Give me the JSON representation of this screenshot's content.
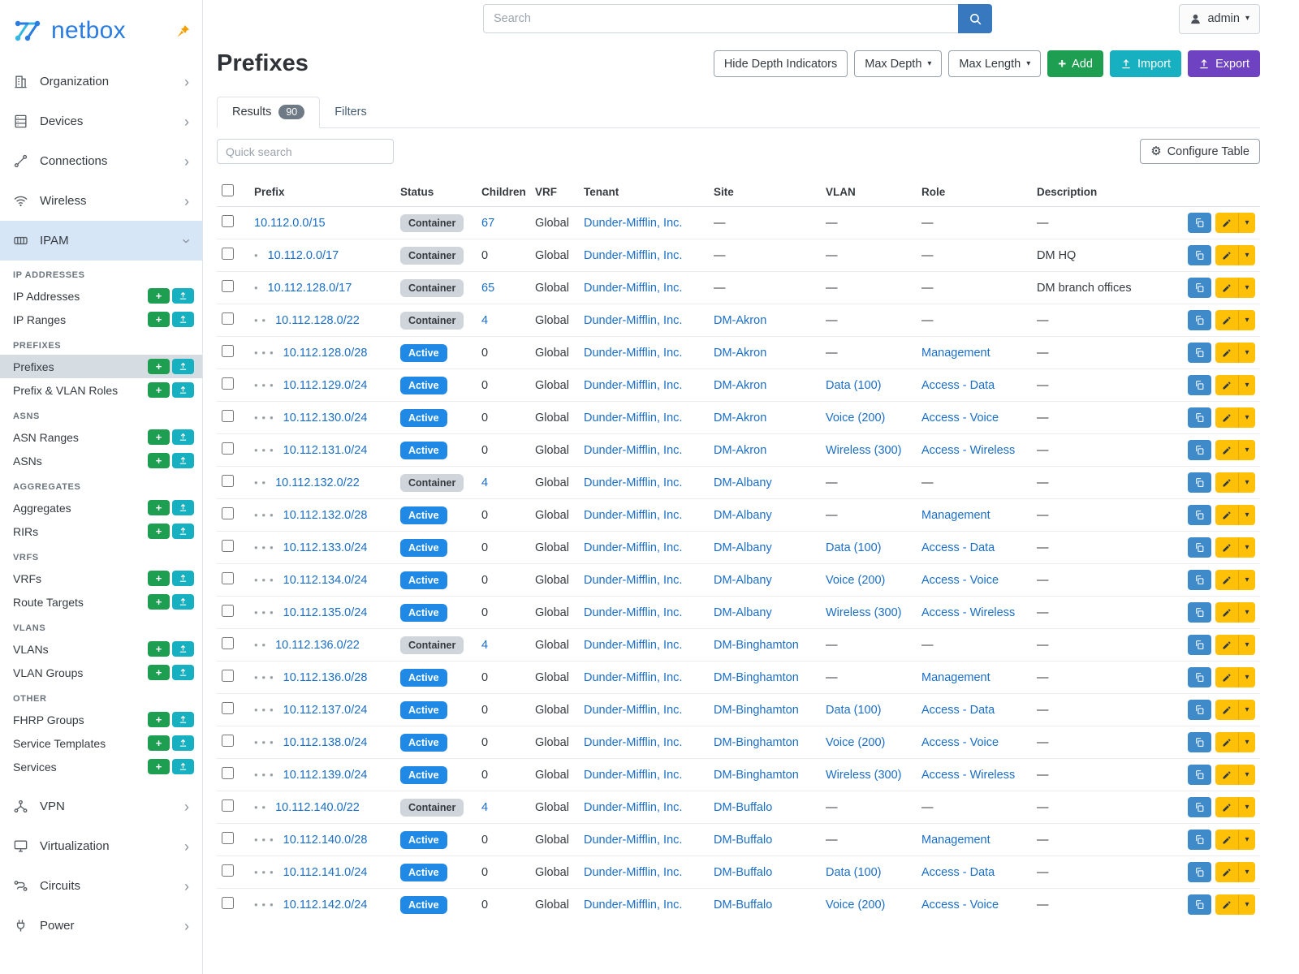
{
  "brand": {
    "name": "netbox"
  },
  "topbar": {
    "search_placeholder": "Search",
    "user_label": "admin"
  },
  "colors": {
    "brand_blue": "#2b7ce0",
    "pin_orange": "#f59f00",
    "link": "#1a6ec7",
    "active_badge": "#2089e5",
    "container_badge": "#cfd5da",
    "add_green": "#1e9e50",
    "import_teal": "#16b0c0",
    "export_purple": "#6f42c1",
    "edit_yellow": "#ffc107",
    "copy_blue": "#3f8ac9",
    "search_blue": "#3778be"
  },
  "sidebar": {
    "top_items": [
      {
        "label": "Organization",
        "icon": "building-icon"
      },
      {
        "label": "Devices",
        "icon": "rack-icon"
      },
      {
        "label": "Connections",
        "icon": "connections-icon"
      },
      {
        "label": "Wireless",
        "icon": "wifi-icon"
      }
    ],
    "ipam_label": "IPAM",
    "groups": [
      {
        "header": "IP ADDRESSES",
        "items": [
          {
            "label": "IP Addresses"
          },
          {
            "label": "IP Ranges"
          }
        ]
      },
      {
        "header": "PREFIXES",
        "items": [
          {
            "label": "Prefixes",
            "active": true
          },
          {
            "label": "Prefix & VLAN Roles"
          }
        ]
      },
      {
        "header": "ASNS",
        "items": [
          {
            "label": "ASN Ranges"
          },
          {
            "label": "ASNs"
          }
        ]
      },
      {
        "header": "AGGREGATES",
        "items": [
          {
            "label": "Aggregates"
          },
          {
            "label": "RIRs"
          }
        ]
      },
      {
        "header": "VRFS",
        "items": [
          {
            "label": "VRFs"
          },
          {
            "label": "Route Targets"
          }
        ]
      },
      {
        "header": "VLANS",
        "items": [
          {
            "label": "VLANs"
          },
          {
            "label": "VLAN Groups"
          }
        ]
      },
      {
        "header": "OTHER",
        "items": [
          {
            "label": "FHRP Groups"
          },
          {
            "label": "Service Templates"
          },
          {
            "label": "Services"
          }
        ]
      }
    ],
    "bottom_items": [
      {
        "label": "VPN",
        "icon": "vpn-icon"
      },
      {
        "label": "Virtualization",
        "icon": "monitor-icon"
      },
      {
        "label": "Circuits",
        "icon": "circuits-icon"
      },
      {
        "label": "Power",
        "icon": "power-icon"
      }
    ]
  },
  "page": {
    "title": "Prefixes",
    "buttons": {
      "hide_depth": "Hide Depth Indicators",
      "max_depth": "Max Depth",
      "max_length": "Max Length",
      "add": "Add",
      "import": "Import",
      "export": "Export"
    },
    "tabs": {
      "results": "Results",
      "results_count": "90",
      "filters": "Filters"
    },
    "quick_search_placeholder": "Quick search",
    "configure_table": "Configure Table"
  },
  "table": {
    "columns": [
      "Prefix",
      "Status",
      "Children",
      "VRF",
      "Tenant",
      "Site",
      "VLAN",
      "Role",
      "Description"
    ],
    "rows": [
      {
        "depth": 0,
        "prefix": "10.112.0.0/15",
        "status": "Container",
        "children": "67",
        "vrf": "Global",
        "tenant": "Dunder-Mifflin, Inc.",
        "site": "—",
        "vlan": "—",
        "role": "—",
        "description": "—"
      },
      {
        "depth": 1,
        "prefix": "10.112.0.0/17",
        "status": "Container",
        "children": "0",
        "vrf": "Global",
        "tenant": "Dunder-Mifflin, Inc.",
        "site": "—",
        "vlan": "—",
        "role": "—",
        "description": "DM HQ"
      },
      {
        "depth": 1,
        "prefix": "10.112.128.0/17",
        "status": "Container",
        "children": "65",
        "vrf": "Global",
        "tenant": "Dunder-Mifflin, Inc.",
        "site": "—",
        "vlan": "—",
        "role": "—",
        "description": "DM branch offices"
      },
      {
        "depth": 2,
        "prefix": "10.112.128.0/22",
        "status": "Container",
        "children": "4",
        "vrf": "Global",
        "tenant": "Dunder-Mifflin, Inc.",
        "site": "DM-Akron",
        "vlan": "—",
        "role": "—",
        "description": "—"
      },
      {
        "depth": 3,
        "prefix": "10.112.128.0/28",
        "status": "Active",
        "children": "0",
        "vrf": "Global",
        "tenant": "Dunder-Mifflin, Inc.",
        "site": "DM-Akron",
        "vlan": "—",
        "role": "Management",
        "description": "—"
      },
      {
        "depth": 3,
        "prefix": "10.112.129.0/24",
        "status": "Active",
        "children": "0",
        "vrf": "Global",
        "tenant": "Dunder-Mifflin, Inc.",
        "site": "DM-Akron",
        "vlan": "Data (100)",
        "role": "Access - Data",
        "description": "—"
      },
      {
        "depth": 3,
        "prefix": "10.112.130.0/24",
        "status": "Active",
        "children": "0",
        "vrf": "Global",
        "tenant": "Dunder-Mifflin, Inc.",
        "site": "DM-Akron",
        "vlan": "Voice (200)",
        "role": "Access - Voice",
        "description": "—"
      },
      {
        "depth": 3,
        "prefix": "10.112.131.0/24",
        "status": "Active",
        "children": "0",
        "vrf": "Global",
        "tenant": "Dunder-Mifflin, Inc.",
        "site": "DM-Akron",
        "vlan": "Wireless (300)",
        "role": "Access - Wireless",
        "description": "—"
      },
      {
        "depth": 2,
        "prefix": "10.112.132.0/22",
        "status": "Container",
        "children": "4",
        "vrf": "Global",
        "tenant": "Dunder-Mifflin, Inc.",
        "site": "DM-Albany",
        "vlan": "—",
        "role": "—",
        "description": "—"
      },
      {
        "depth": 3,
        "prefix": "10.112.132.0/28",
        "status": "Active",
        "children": "0",
        "vrf": "Global",
        "tenant": "Dunder-Mifflin, Inc.",
        "site": "DM-Albany",
        "vlan": "—",
        "role": "Management",
        "description": "—"
      },
      {
        "depth": 3,
        "prefix": "10.112.133.0/24",
        "status": "Active",
        "children": "0",
        "vrf": "Global",
        "tenant": "Dunder-Mifflin, Inc.",
        "site": "DM-Albany",
        "vlan": "Data (100)",
        "role": "Access - Data",
        "description": "—"
      },
      {
        "depth": 3,
        "prefix": "10.112.134.0/24",
        "status": "Active",
        "children": "0",
        "vrf": "Global",
        "tenant": "Dunder-Mifflin, Inc.",
        "site": "DM-Albany",
        "vlan": "Voice (200)",
        "role": "Access - Voice",
        "description": "—"
      },
      {
        "depth": 3,
        "prefix": "10.112.135.0/24",
        "status": "Active",
        "children": "0",
        "vrf": "Global",
        "tenant": "Dunder-Mifflin, Inc.",
        "site": "DM-Albany",
        "vlan": "Wireless (300)",
        "role": "Access - Wireless",
        "description": "—"
      },
      {
        "depth": 2,
        "prefix": "10.112.136.0/22",
        "status": "Container",
        "children": "4",
        "vrf": "Global",
        "tenant": "Dunder-Mifflin, Inc.",
        "site": "DM-Binghamton",
        "vlan": "—",
        "role": "—",
        "description": "—"
      },
      {
        "depth": 3,
        "prefix": "10.112.136.0/28",
        "status": "Active",
        "children": "0",
        "vrf": "Global",
        "tenant": "Dunder-Mifflin, Inc.",
        "site": "DM-Binghamton",
        "vlan": "—",
        "role": "Management",
        "description": "—"
      },
      {
        "depth": 3,
        "prefix": "10.112.137.0/24",
        "status": "Active",
        "children": "0",
        "vrf": "Global",
        "tenant": "Dunder-Mifflin, Inc.",
        "site": "DM-Binghamton",
        "vlan": "Data (100)",
        "role": "Access - Data",
        "description": "—"
      },
      {
        "depth": 3,
        "prefix": "10.112.138.0/24",
        "status": "Active",
        "children": "0",
        "vrf": "Global",
        "tenant": "Dunder-Mifflin, Inc.",
        "site": "DM-Binghamton",
        "vlan": "Voice (200)",
        "role": "Access - Voice",
        "description": "—"
      },
      {
        "depth": 3,
        "prefix": "10.112.139.0/24",
        "status": "Active",
        "children": "0",
        "vrf": "Global",
        "tenant": "Dunder-Mifflin, Inc.",
        "site": "DM-Binghamton",
        "vlan": "Wireless (300)",
        "role": "Access - Wireless",
        "description": "—"
      },
      {
        "depth": 2,
        "prefix": "10.112.140.0/22",
        "status": "Container",
        "children": "4",
        "vrf": "Global",
        "tenant": "Dunder-Mifflin, Inc.",
        "site": "DM-Buffalo",
        "vlan": "—",
        "role": "—",
        "description": "—"
      },
      {
        "depth": 3,
        "prefix": "10.112.140.0/28",
        "status": "Active",
        "children": "0",
        "vrf": "Global",
        "tenant": "Dunder-Mifflin, Inc.",
        "site": "DM-Buffalo",
        "vlan": "—",
        "role": "Management",
        "description": "—"
      },
      {
        "depth": 3,
        "prefix": "10.112.141.0/24",
        "status": "Active",
        "children": "0",
        "vrf": "Global",
        "tenant": "Dunder-Mifflin, Inc.",
        "site": "DM-Buffalo",
        "vlan": "Data (100)",
        "role": "Access - Data",
        "description": "—"
      },
      {
        "depth": 3,
        "prefix": "10.112.142.0/24",
        "status": "Active",
        "children": "0",
        "vrf": "Global",
        "tenant": "Dunder-Mifflin, Inc.",
        "site": "DM-Buffalo",
        "vlan": "Voice (200)",
        "role": "Access - Voice",
        "description": "—"
      }
    ]
  }
}
